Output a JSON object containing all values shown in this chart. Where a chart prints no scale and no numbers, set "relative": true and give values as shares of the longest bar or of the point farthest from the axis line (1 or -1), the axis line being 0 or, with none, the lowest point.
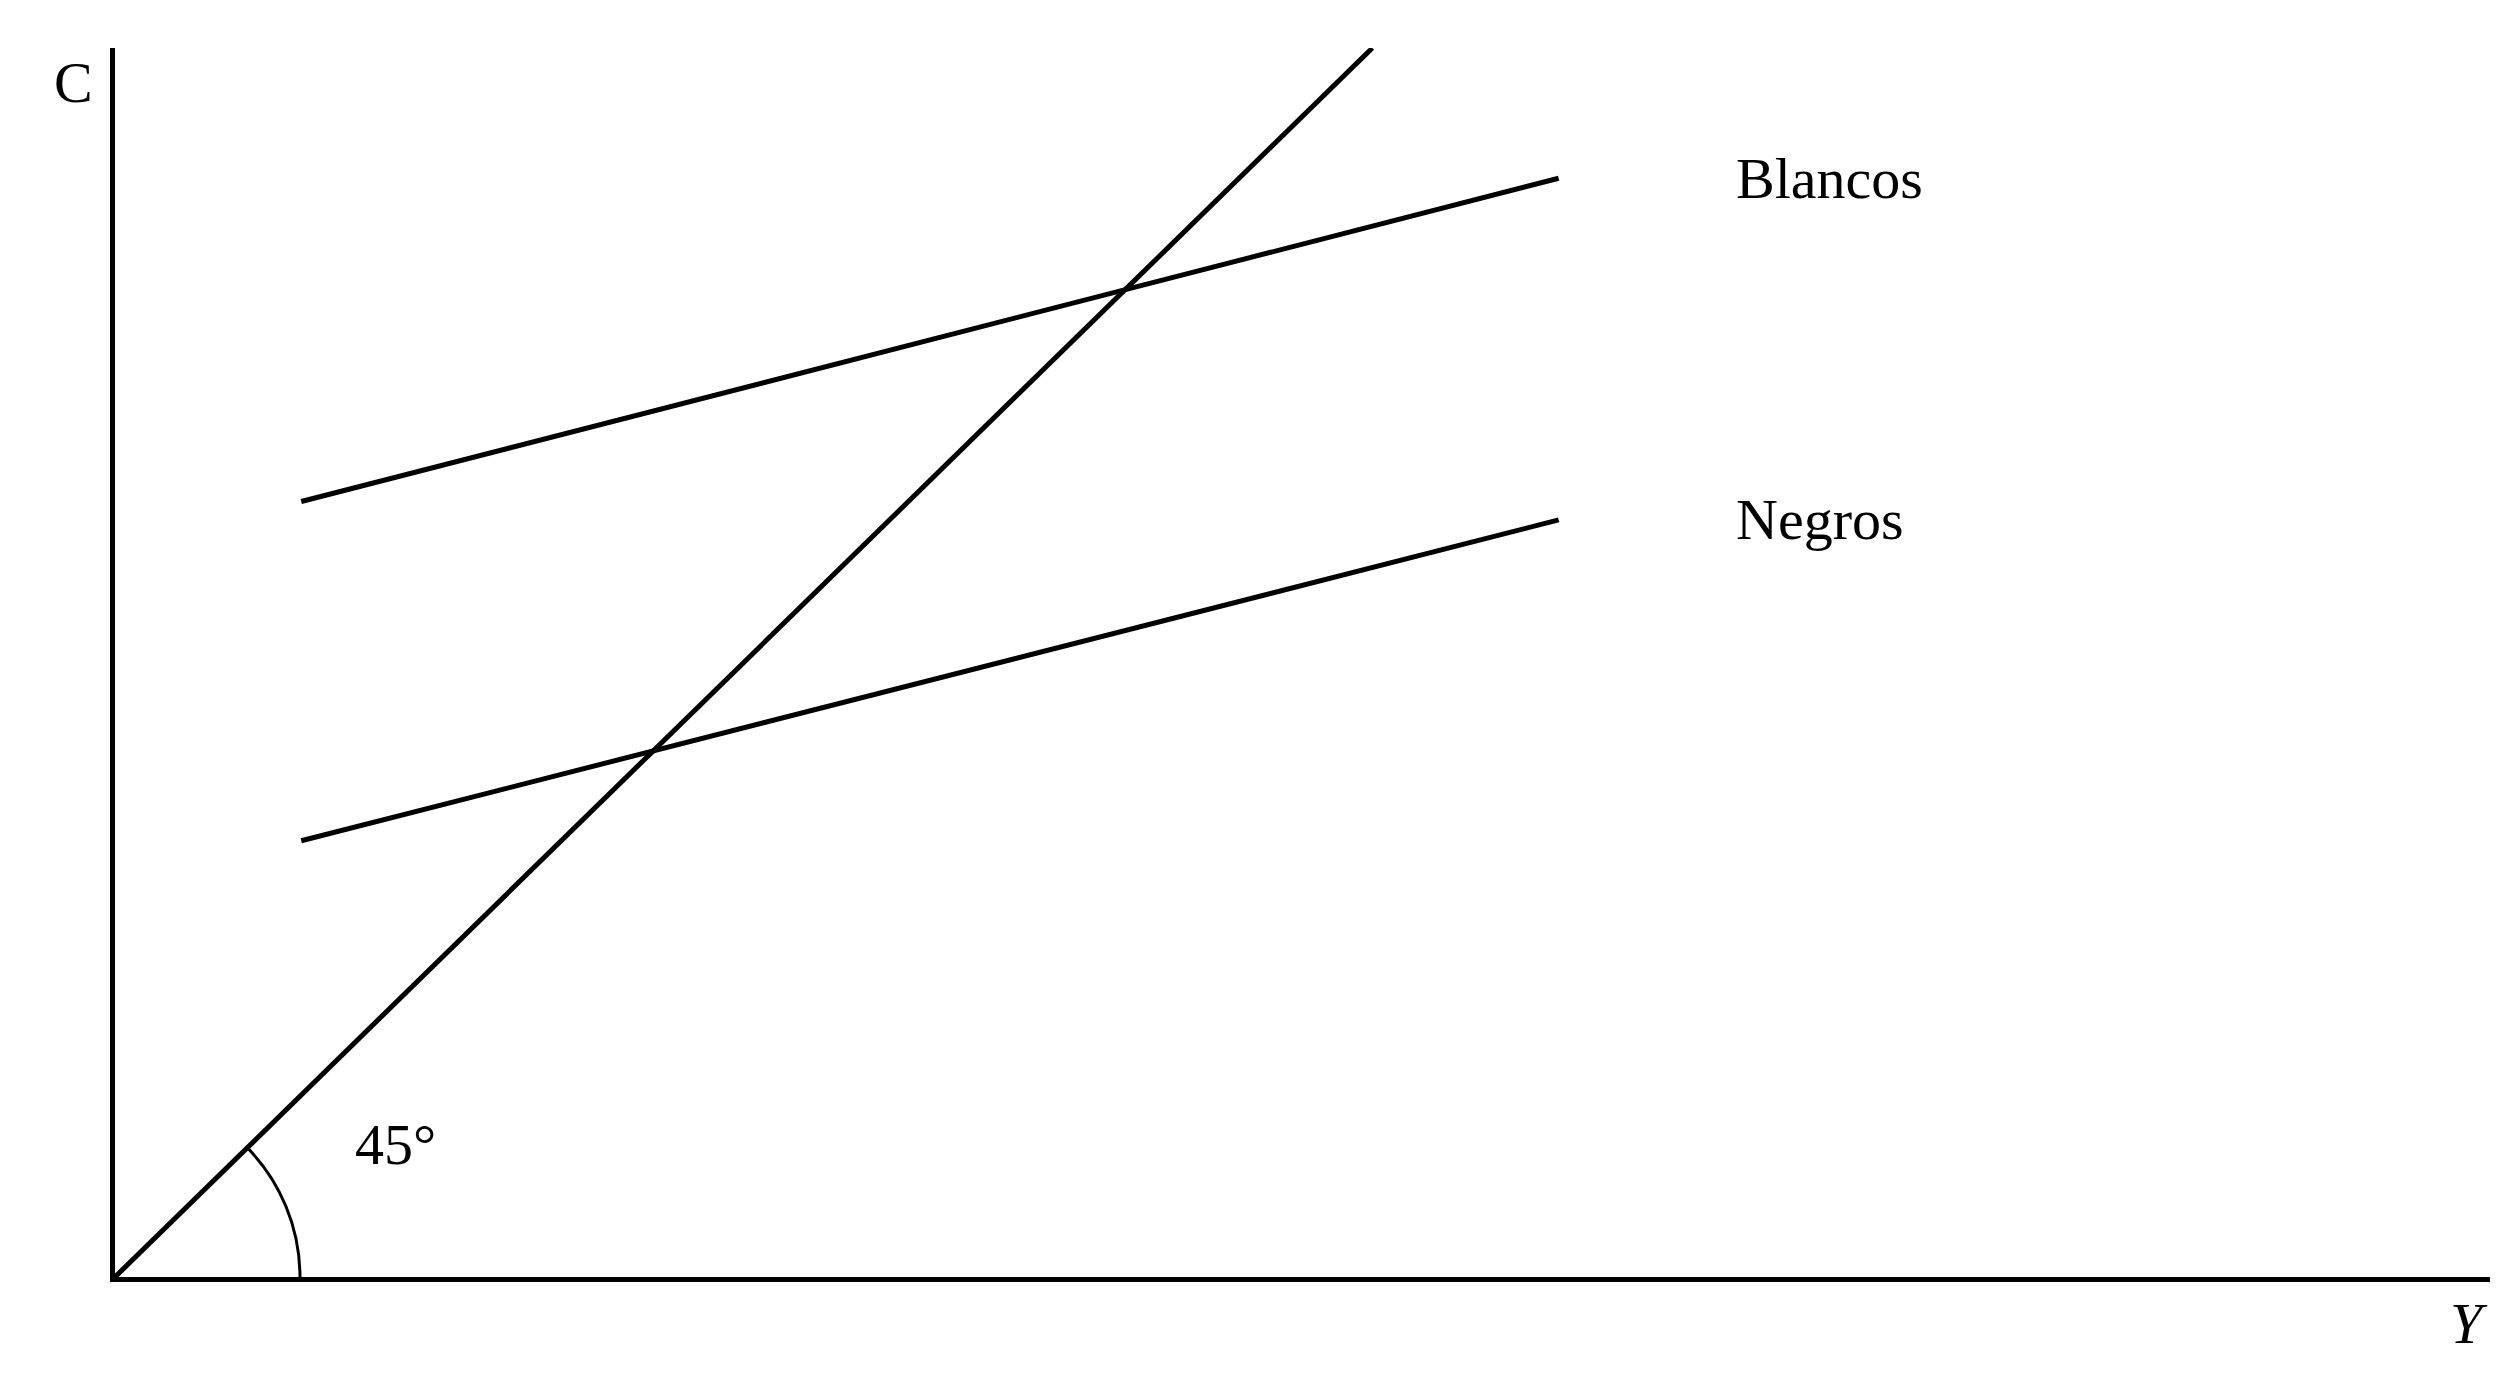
{
  "chart_data": {
    "type": "line",
    "relative": true,
    "xlabel": "Y",
    "ylabel": "C",
    "annotations": [
      "45°"
    ],
    "categories": [
      null,
      null,
      null,
      null,
      null,
      null,
      null,
      null,
      null,
      null,
      null,
      null,
      null,
      null,
      null,
      null,
      null,
      null,
      null,
      null,
      null,
      null,
      null,
      null,
      null,
      null,
      null,
      null,
      null,
      null,
      null,
      null,
      null,
      null,
      null,
      null,
      null,
      null,
      null,
      null,
      null,
      null,
      null,
      null,
      null,
      null,
      null,
      null,
      null,
      null,
      null,
      null
    ],
    "series": [
      {
        "color": "#000000",
        "values": [
          0,
          null,
          null,
          null,
          null,
          null,
          null,
          null,
          null,
          null,
          null,
          null,
          null,
          null,
          null,
          null,
          null,
          null,
          null,
          null,
          null,
          null,
          null,
          null,
          null,
          null,
          null,
          1,
          null,
          null,
          null,
          null,
          null,
          null,
          null,
          null,
          null,
          null,
          null,
          null,
          null,
          null,
          null,
          null,
          null,
          null,
          null,
          null,
          null,
          null,
          null,
          null
        ]
      },
      {
        "name": "Blancos",
        "color": "#000000",
        "values": [
          null,
          null,
          null,
          null,
          0.631,
          null,
          null,
          null,
          null,
          null,
          null,
          null,
          null,
          null,
          null,
          null,
          null,
          null,
          null,
          null,
          null,
          null,
          null,
          null,
          null,
          null,
          null,
          null,
          null,
          null,
          null,
          0.894,
          null,
          null,
          null,
          null,
          null,
          null,
          null,
          null,
          null,
          null,
          null,
          null,
          null,
          null,
          null,
          null,
          null,
          null,
          null,
          null
        ]
      },
      {
        "name": "Negros",
        "color": "#000000",
        "values": [
          null,
          null,
          null,
          null,
          0.355,
          null,
          null,
          null,
          null,
          null,
          null,
          null,
          null,
          null,
          null,
          null,
          null,
          null,
          null,
          null,
          null,
          null,
          null,
          null,
          null,
          null,
          null,
          null,
          null,
          null,
          null,
          0.616,
          null,
          null,
          null,
          null,
          null,
          null,
          null,
          null,
          null,
          null,
          null,
          null,
          null,
          null,
          null,
          null,
          null,
          null,
          null,
          null
        ]
      }
    ],
    "grid": false,
    "legend": false,
    "marker": "none",
    "line_style": "solid"
  }
}
